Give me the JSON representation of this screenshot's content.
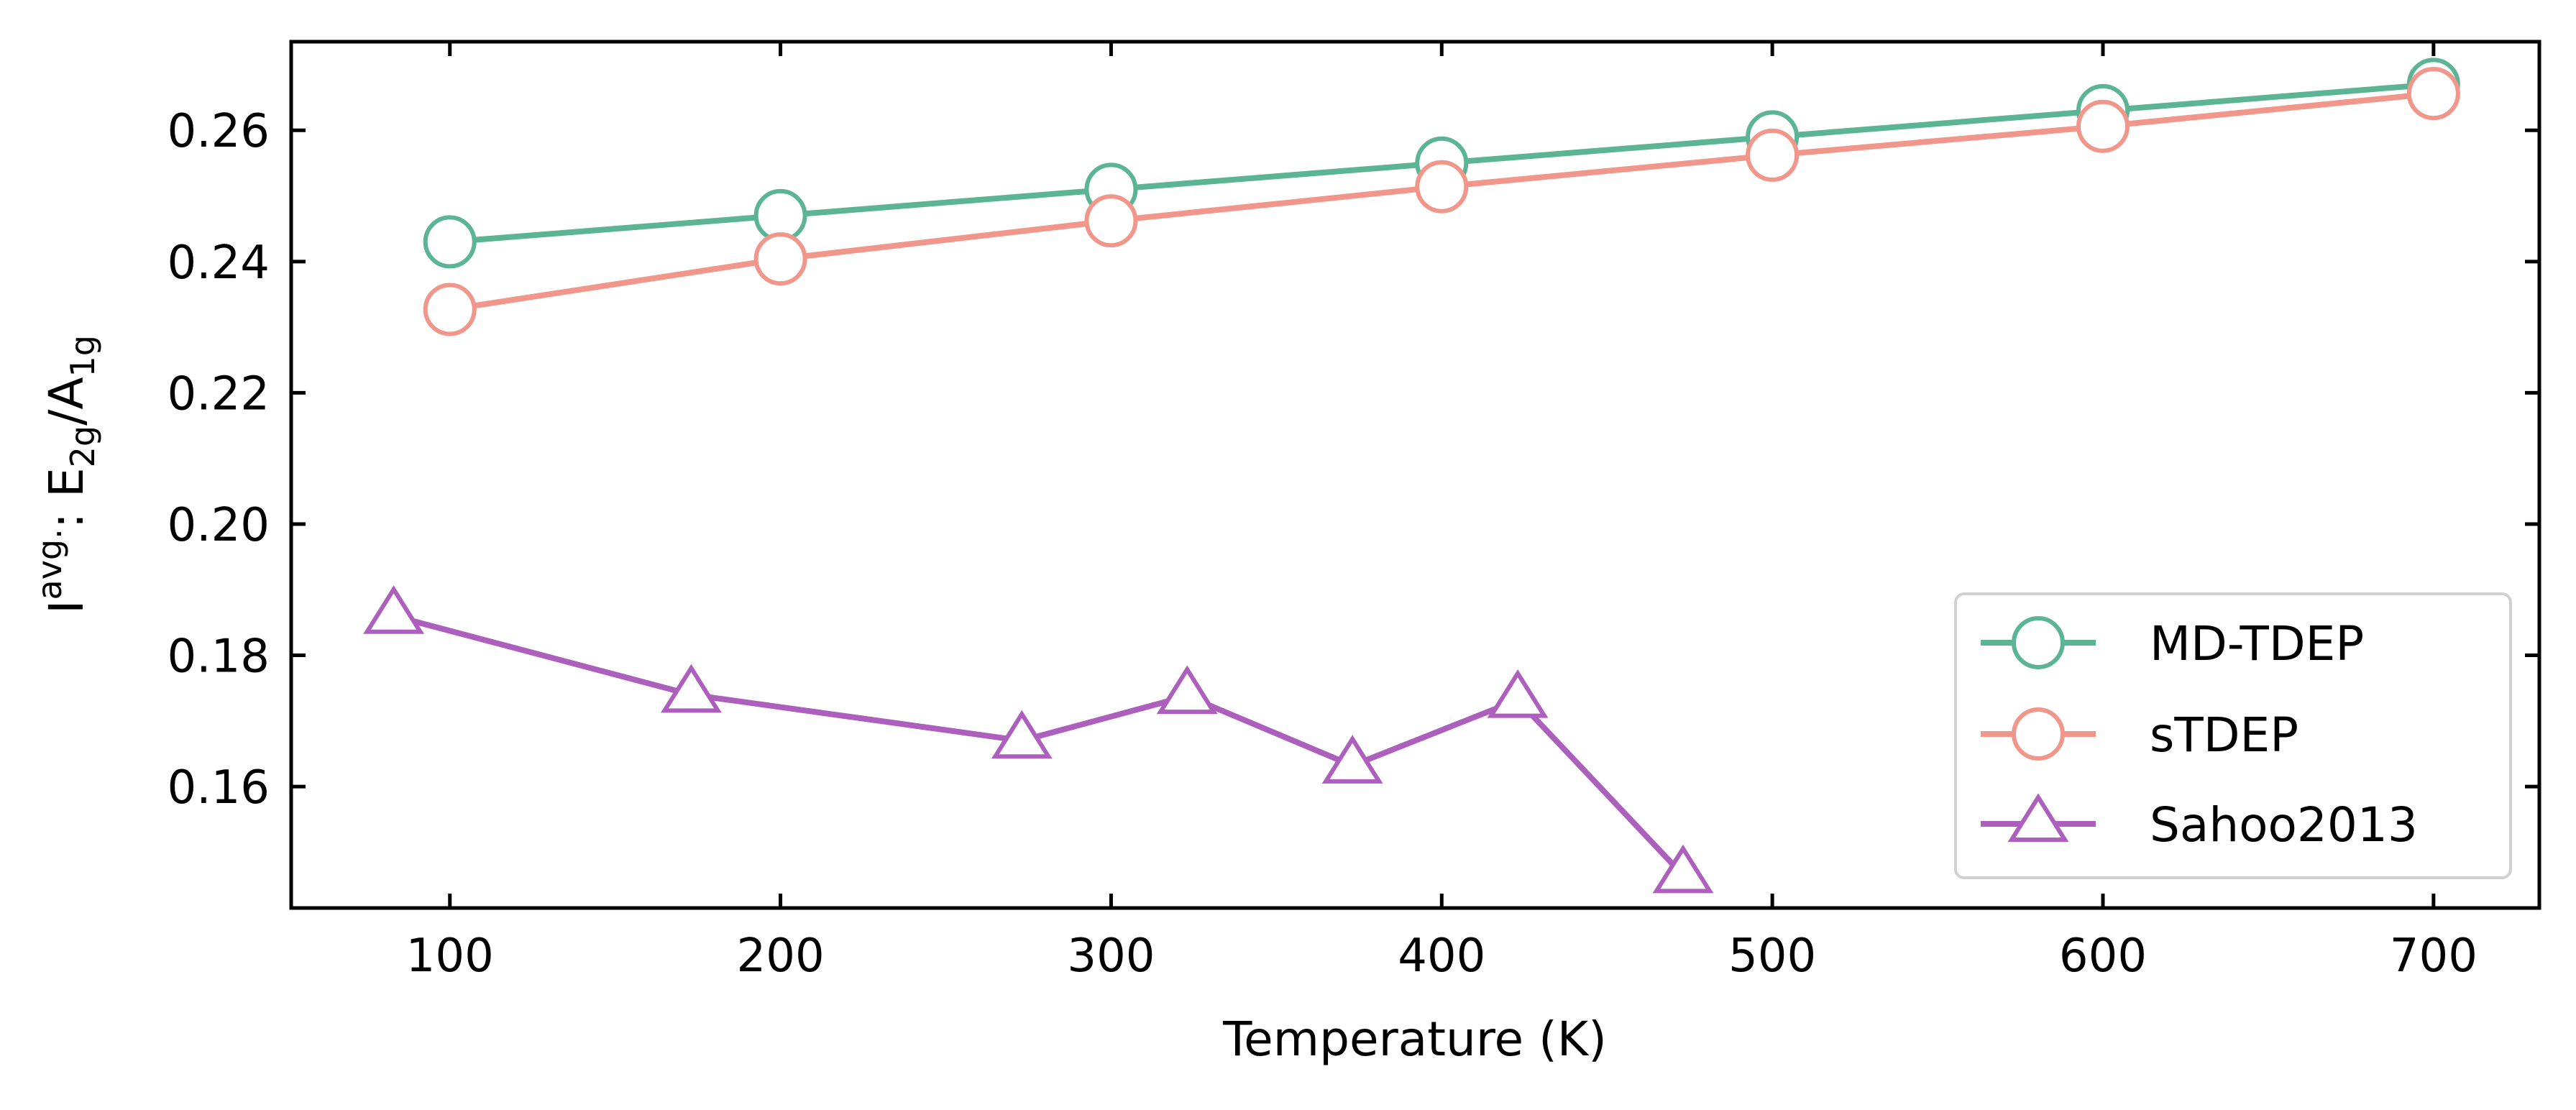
{
  "chart_data": {
    "type": "line",
    "title": "",
    "xlabel": "Temperature (K)",
    "ylabel": {
      "base": "I",
      "sup": "avg.",
      "mid": ": E",
      "sub1": "2g",
      "slash": "/A",
      "sub2": "1g"
    },
    "xlim": [
      52,
      732
    ],
    "ylim": [
      0.1415,
      0.2735
    ],
    "xticks": [
      100,
      200,
      300,
      400,
      500,
      600,
      700
    ],
    "xtick_labels": [
      "100",
      "200",
      "300",
      "400",
      "500",
      "600",
      "700"
    ],
    "yticks": [
      0.16,
      0.18,
      0.2,
      0.22,
      0.24,
      0.26
    ],
    "ytick_labels": [
      "0.16",
      "0.18",
      "0.20",
      "0.22",
      "0.24",
      "0.26"
    ],
    "grid": false,
    "legend_position": "lower-right",
    "series": [
      {
        "name": "MD-TDEP",
        "color": "#5bb595",
        "marker": "circle",
        "x": [
          100,
          200,
          300,
          400,
          500,
          600,
          700
        ],
        "y": [
          0.243,
          0.247,
          0.251,
          0.255,
          0.259,
          0.263,
          0.267
        ]
      },
      {
        "name": "sTDEP",
        "color": "#f1968a",
        "marker": "circle",
        "x": [
          100,
          200,
          300,
          400,
          500,
          600,
          700
        ],
        "y": [
          0.2327,
          0.2404,
          0.2462,
          0.2514,
          0.2562,
          0.2606,
          0.2656
        ]
      },
      {
        "name": "Sahoo2013",
        "color": "#ad5fbd",
        "marker": "triangle",
        "x": [
          83,
          173,
          273,
          323,
          373,
          423,
          473
        ],
        "y": [
          0.186,
          0.174,
          0.167,
          0.1738,
          0.1632,
          0.1732,
          0.1465
        ]
      }
    ]
  }
}
